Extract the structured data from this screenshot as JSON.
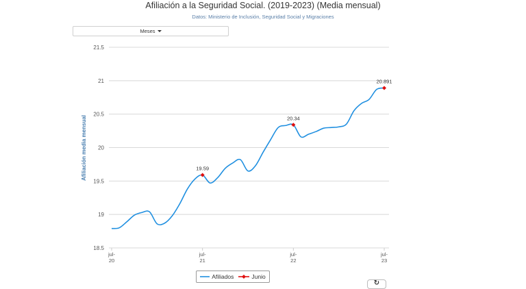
{
  "chart_data": {
    "type": "line",
    "title": "Afiliación a la Seguridad Social. (2019-2023) (Media mensual)",
    "subtitle": "Datos: Ministerio de Inclusión, Seguridad Social y Migraciones",
    "ylabel": "Afiliación media mensual",
    "xlabel": "",
    "ylim": [
      18.5,
      21.5
    ],
    "yticks": [
      "18.5",
      "19",
      "19.5",
      "20",
      "20.5",
      "21",
      "21.5"
    ],
    "yticks_values": [
      18.5,
      19,
      19.5,
      20,
      20.5,
      21,
      21.5
    ],
    "xticks": [
      {
        "month": 0,
        "line1": "jul-",
        "line2": "20"
      },
      {
        "month": 12,
        "line1": "jul-",
        "line2": "21"
      },
      {
        "month": 24,
        "line1": "jul-",
        "line2": "22"
      },
      {
        "month": 36,
        "line1": "jul-",
        "line2": "23"
      }
    ],
    "grid": true,
    "legend_position": "bottom",
    "series": [
      {
        "name": "Afiliados",
        "color": "#1f8fe0",
        "x": [
          0,
          1,
          2,
          3,
          4,
          5,
          6,
          7,
          8,
          9,
          10,
          11,
          12,
          13,
          14,
          15,
          16,
          17,
          18,
          19,
          20,
          21,
          22,
          23,
          24,
          25,
          26,
          27,
          28,
          29,
          30,
          31,
          32,
          33,
          34,
          35,
          36
        ],
        "values": [
          18.79,
          18.8,
          18.89,
          18.99,
          19.03,
          19.04,
          18.86,
          18.87,
          18.98,
          19.16,
          19.38,
          19.53,
          19.59,
          19.47,
          19.55,
          19.69,
          19.77,
          19.82,
          19.65,
          19.73,
          19.93,
          20.12,
          20.3,
          20.33,
          20.34,
          20.16,
          20.2,
          20.24,
          20.29,
          20.3,
          20.31,
          20.35,
          20.55,
          20.66,
          20.72,
          20.87,
          20.891
        ]
      },
      {
        "name": "Junio",
        "color": "#e01010",
        "x": [
          12,
          24,
          36
        ],
        "values": [
          19.59,
          20.34,
          20.891
        ],
        "labels": [
          "19.59",
          "20.34",
          "20.891"
        ]
      }
    ]
  },
  "controls": {
    "period_selector": "Meses"
  },
  "legend": [
    {
      "label": "Afiliados",
      "color": "#1f8fe0"
    },
    {
      "label": "Junio",
      "color": "#e01010"
    }
  ],
  "corner_button_icon": "refresh-icon"
}
